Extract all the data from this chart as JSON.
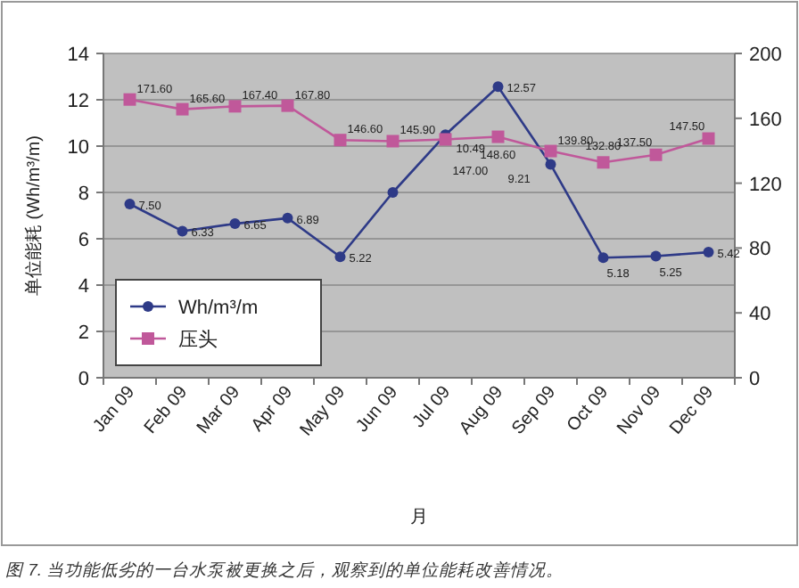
{
  "chart_data": {
    "type": "line",
    "xlabel": "月",
    "ylabel": "单位能耗 (Wh/m³/m)",
    "categories": [
      "Jan 09",
      "Feb 09",
      "Mar 09",
      "Apr 09",
      "May 09",
      "Jun 09",
      "Jul 09",
      "Aug 09",
      "Sep 09",
      "Oct 09",
      "Nov 09",
      "Dec 09"
    ],
    "series": [
      {
        "name": "Wh/m³/m",
        "color": "#2e3a87",
        "values": [
          7.5,
          6.33,
          6.65,
          6.89,
          5.22,
          8.0,
          10.49,
          12.57,
          9.21,
          5.18,
          5.25,
          5.42
        ],
        "value_labels": [
          "7.50",
          "6.33",
          "6.65",
          "6.89",
          "5.22",
          null,
          "10.49",
          "12.57",
          "9.21",
          "5.18",
          "5.25",
          "5.42"
        ],
        "marker": "circle"
      },
      {
        "name": "压头",
        "color": "#c0589a",
        "axis": "y2",
        "values": [
          171.6,
          165.6,
          167.4,
          167.8,
          146.6,
          145.9,
          147.0,
          148.6,
          139.8,
          132.8,
          137.5,
          147.5
        ],
        "value_labels": [
          "171.60",
          "165.60",
          "167.40",
          "167.80",
          "146.60",
          "145.90",
          "147.00",
          "148.60",
          "139.80",
          "132.80",
          "137.50",
          "147.50"
        ],
        "marker": "square"
      }
    ],
    "ylim": [
      0,
      14
    ],
    "yticks": [
      0,
      2,
      4,
      6,
      8,
      10,
      12,
      14
    ],
    "y2lim": [
      0,
      200
    ],
    "y2ticks": [
      0,
      40,
      80,
      120,
      160,
      200
    ],
    "grid": "y",
    "legend": "bottom left",
    "annotations": [
      "图 7. 当功能低劣的一台水泵被更换之后，观察到的单位能耗改善情况。"
    ]
  }
}
